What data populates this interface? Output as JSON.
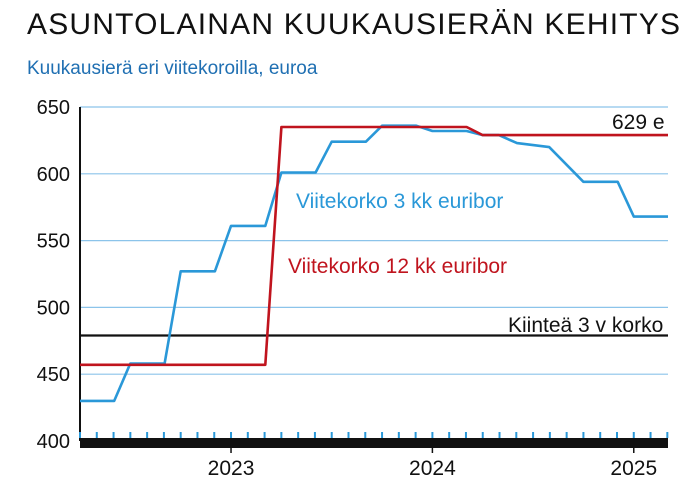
{
  "header": {
    "title": "ASUNTOLAINAN KUUKAUSIERÄN KEHITYS",
    "subtitle": "Kuukausierä eri viitekoroilla, euroa"
  },
  "colors": {
    "euribor3": "#2a98d8",
    "euribor12": "#c0141e",
    "fixed": "#111111",
    "grid": "#8cc4ea"
  },
  "chart_data": {
    "type": "line",
    "title": "ASUNTOLAINAN KUUKAUSIERÄN KEHITYS",
    "subtitle": "Kuukausierä eri viitekoroilla, euroa",
    "ylim": [
      400,
      650
    ],
    "yticks": [
      400,
      450,
      500,
      550,
      600,
      650
    ],
    "xlim": [
      2022.25,
      2025.17
    ],
    "xticks": [
      {
        "label": "2023",
        "x": 2023.0
      },
      {
        "label": "2024",
        "x": 2024.0
      },
      {
        "label": "2025",
        "x": 2025.0
      }
    ],
    "grid": true,
    "series": [
      {
        "name": "Viitekorko 3 kk euribor",
        "step": true,
        "x": [
          2022.25,
          2022.42,
          2022.5,
          2022.67,
          2022.75,
          2022.92,
          2023.0,
          2023.17,
          2023.25,
          2023.42,
          2023.5,
          2023.67,
          2023.75,
          2023.92,
          2024.0,
          2024.17,
          2024.25,
          2024.33,
          2024.42,
          2024.58,
          2024.75,
          2024.92,
          2025.0,
          2025.17
        ],
        "values": [
          430,
          430,
          458,
          458,
          527,
          527,
          561,
          561,
          601,
          601,
          624,
          624,
          636,
          636,
          632,
          632,
          629,
          629,
          623,
          620,
          594,
          594,
          568,
          568
        ]
      },
      {
        "name": "Viitekorko 12 kk euribor",
        "step": true,
        "x": [
          2022.25,
          2023.17,
          2023.25,
          2024.17,
          2024.25,
          2025.17
        ],
        "values": [
          457,
          457,
          635,
          635,
          629,
          629
        ]
      },
      {
        "name": "Kiinteä 3 v korko",
        "step": false,
        "x": [
          2022.25,
          2025.17
        ],
        "values": [
          479,
          479
        ]
      }
    ],
    "annotations": {
      "end_value": "629 e",
      "label_euribor3": "Viitekorko 3 kk euribor",
      "label_euribor12": "Viitekorko 12 kk euribor",
      "label_fixed": "Kiinteä 3 v korko"
    }
  }
}
